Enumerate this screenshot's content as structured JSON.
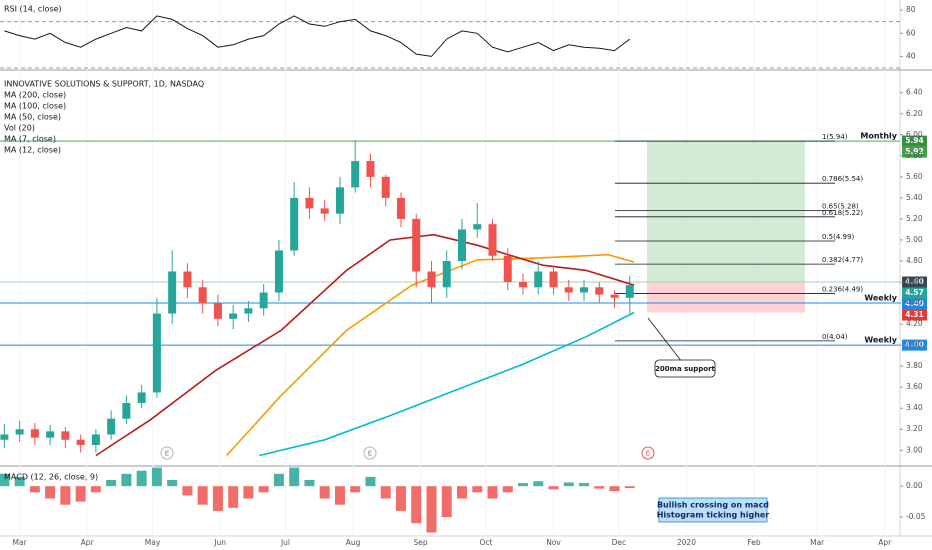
{
  "chart_data": [
    {
      "type": "line",
      "title": "RSI (14, close)",
      "color": "#131722",
      "x": [
        53,
        60,
        67,
        74,
        81,
        88,
        95,
        102,
        109,
        116,
        123,
        130,
        137,
        144,
        151,
        158,
        165,
        172,
        179,
        186,
        193,
        200,
        207,
        214,
        221,
        228,
        235,
        242,
        249,
        256,
        263,
        270,
        277,
        284,
        291,
        298,
        305,
        312,
        319,
        326,
        333,
        340
      ],
      "values": [
        62,
        58,
        55,
        60,
        52,
        48,
        55,
        60,
        65,
        62,
        75,
        72,
        64,
        58,
        48,
        50,
        55,
        58,
        68,
        75,
        68,
        66,
        70,
        72,
        62,
        58,
        52,
        42,
        40,
        55,
        62,
        60,
        48,
        44,
        48,
        52,
        45,
        50,
        48,
        47,
        45,
        55
      ],
      "levels": [
        70,
        30
      ],
      "ylim": [
        30,
        87
      ],
      "yticks": [
        80,
        60,
        40
      ]
    },
    {
      "type": "candlestick",
      "title": "INNOVATIVE SOLUTIONS & SUPPORT, 1D, NASDAQ",
      "x": [
        53,
        60,
        67,
        74,
        81,
        88,
        95,
        102,
        109,
        116,
        123,
        130,
        137,
        144,
        151,
        158,
        165,
        172,
        179,
        186,
        193,
        200,
        207,
        214,
        221,
        228,
        235,
        242,
        249,
        256,
        263,
        270,
        277,
        284,
        291,
        298,
        305,
        312,
        319,
        326,
        333,
        340
      ],
      "open": [
        3.1,
        3.15,
        3.2,
        3.12,
        3.18,
        3.1,
        3.05,
        3.15,
        3.3,
        3.45,
        3.55,
        4.3,
        4.7,
        4.55,
        4.4,
        4.25,
        4.3,
        4.35,
        4.5,
        4.9,
        5.4,
        5.3,
        5.25,
        5.5,
        5.75,
        5.6,
        5.4,
        5.2,
        4.7,
        4.55,
        4.8,
        5.1,
        5.15,
        4.85,
        4.6,
        4.55,
        4.7,
        4.55,
        4.5,
        4.55,
        4.48,
        4.45
      ],
      "high": [
        3.25,
        3.28,
        3.26,
        3.24,
        3.22,
        3.15,
        3.2,
        3.38,
        3.52,
        3.62,
        4.45,
        4.9,
        4.78,
        4.62,
        4.48,
        4.38,
        4.42,
        4.58,
        5.0,
        5.55,
        5.5,
        5.38,
        5.6,
        5.95,
        5.82,
        5.62,
        5.45,
        5.25,
        4.8,
        4.9,
        5.2,
        5.35,
        5.2,
        4.92,
        4.68,
        4.8,
        4.75,
        4.62,
        4.62,
        4.6,
        4.52,
        4.66
      ],
      "low": [
        3.02,
        3.08,
        3.05,
        3.05,
        3.02,
        2.98,
        2.98,
        3.1,
        3.25,
        3.4,
        3.5,
        4.2,
        4.45,
        4.3,
        4.18,
        4.15,
        4.22,
        4.28,
        4.42,
        4.85,
        5.2,
        5.18,
        5.15,
        5.45,
        5.5,
        5.32,
        5.12,
        4.55,
        4.4,
        4.45,
        4.72,
        5.02,
        4.8,
        4.52,
        4.48,
        4.48,
        4.48,
        4.42,
        4.42,
        4.4,
        4.35,
        4.3
      ],
      "close": [
        3.15,
        3.2,
        3.12,
        3.18,
        3.1,
        3.05,
        3.15,
        3.3,
        3.45,
        3.55,
        4.3,
        4.7,
        4.55,
        4.4,
        4.25,
        4.3,
        4.35,
        4.5,
        4.9,
        5.4,
        5.3,
        5.25,
        5.5,
        5.75,
        5.6,
        5.4,
        5.2,
        4.7,
        4.55,
        4.8,
        5.1,
        5.15,
        4.85,
        4.6,
        4.55,
        4.7,
        4.55,
        4.5,
        4.55,
        4.48,
        4.45,
        4.57
      ],
      "up_color": "#26a69a",
      "down_color": "#ef5350",
      "series": [
        {
          "name": "MA (200, close)",
          "color": "#00bcd4",
          "x": [
            170,
            200,
            230,
            260,
            290,
            320,
            342
          ],
          "values": [
            2.95,
            3.1,
            3.33,
            3.57,
            3.81,
            4.08,
            4.31
          ]
        },
        {
          "name": "MA (100, close)",
          "color": "#ff9800",
          "x": [
            155,
            180,
            210,
            240,
            270,
            300,
            330,
            342
          ],
          "values": [
            2.95,
            3.52,
            4.14,
            4.57,
            4.81,
            4.83,
            4.86,
            4.79
          ]
        },
        {
          "name": "MA (50, close)",
          "color": "#b71c1c",
          "x": [
            95,
            120,
            150,
            180,
            210,
            230,
            250,
            270,
            300,
            320,
            342
          ],
          "values": [
            2.95,
            3.29,
            3.76,
            4.14,
            4.71,
            5.0,
            5.05,
            4.95,
            4.76,
            4.71,
            4.57
          ]
        }
      ],
      "other_indicators": [
        "Vol (20)",
        "MA (7, close)",
        "MA (12, close)"
      ],
      "xlim": [
        51,
        464
      ],
      "xticks": [
        {
          "value": 60,
          "label": "Mar"
        },
        {
          "value": 91,
          "label": "Apr"
        },
        {
          "value": 121,
          "label": "May"
        },
        {
          "value": 152,
          "label": "Jun"
        },
        {
          "value": 182,
          "label": "Jul"
        },
        {
          "value": 213,
          "label": "Aug"
        },
        {
          "value": 244,
          "label": "Sep"
        },
        {
          "value": 274,
          "label": "Oct"
        },
        {
          "value": 305,
          "label": "Nov"
        },
        {
          "value": 335,
          "label": "Dec"
        },
        {
          "value": 366,
          "label": "2020"
        },
        {
          "value": 397,
          "label": "Feb"
        },
        {
          "value": 426,
          "label": "Mar"
        },
        {
          "value": 457,
          "label": "Apr"
        }
      ],
      "ylim": [
        2.86,
        6.54
      ],
      "yticks": [
        {
          "value": 3.0,
          "label": "3.00"
        },
        {
          "value": 3.2,
          "label": "3.20"
        },
        {
          "value": 3.4,
          "label": "3.40"
        },
        {
          "value": 3.6,
          "label": "3.60"
        },
        {
          "value": 3.8,
          "label": "3.80"
        },
        {
          "value": 4.0,
          "label": "4.00"
        },
        {
          "value": 4.2,
          "label": "4.20"
        },
        {
          "value": 4.4,
          "label": "4.40"
        },
        {
          "value": 4.6,
          "label": "4.60"
        },
        {
          "value": 4.8,
          "label": "4.80"
        },
        {
          "value": 5.0,
          "label": "5.00"
        },
        {
          "value": 5.2,
          "label": "5.20"
        },
        {
          "value": 5.4,
          "label": "5.40"
        },
        {
          "value": 5.6,
          "label": "5.60"
        },
        {
          "value": 5.8,
          "label": "5.80"
        },
        {
          "value": 6.0,
          "label": "6.00"
        },
        {
          "value": 6.2,
          "label": "6.20"
        },
        {
          "value": 6.4,
          "label": "6.40"
        }
      ],
      "fib_levels": [
        {
          "value": 5.94,
          "label": "1(5.94)"
        },
        {
          "value": 5.54,
          "label": "0.786(5.54)"
        },
        {
          "value": 5.28,
          "label": "0.65(5.28)"
        },
        {
          "value": 5.22,
          "label": "0.618(5.22)"
        },
        {
          "value": 4.99,
          "label": "0.5(4.99)"
        },
        {
          "value": 4.77,
          "label": "0.382(4.77)"
        },
        {
          "value": 4.49,
          "label": "0.236(4.49)"
        },
        {
          "value": 4.04,
          "label": "0(4.04)"
        }
      ],
      "price_tags": [
        {
          "value": 5.94,
          "label": "5.94",
          "color": "#388e3c",
          "name": "Monthly",
          "line": "#4caf50"
        },
        {
          "value": 5.92,
          "label": "5.92",
          "color": "#43a047"
        },
        {
          "value": 4.6,
          "label": "4.60",
          "color": "#37474f",
          "line": "#a5d6a7"
        },
        {
          "value": 4.57,
          "label": "4.57",
          "color": "#26a69a"
        },
        {
          "value": 4.4,
          "label": "4.40",
          "color": "#1e88e5",
          "name": "Weekly",
          "line": "#1e88e5"
        },
        {
          "value": 4.31,
          "label": "4.31",
          "color": "#e53935"
        },
        {
          "value": 4.0,
          "label": "4.00",
          "color": "#1e88e5",
          "name": "Weekly",
          "line": "#1e88e5"
        }
      ],
      "earnings_labels": [
        "E",
        "E",
        "E"
      ],
      "annotations": [
        {
          "lines": [
            "200ma support"
          ]
        },
        {
          "lines": [
            "Bullish crossing on macd",
            "Histogram ticking higher"
          ]
        }
      ]
    },
    {
      "type": "bar",
      "title": "MACD (12, 26, close, 9)",
      "x": [
        53,
        60,
        67,
        74,
        81,
        88,
        95,
        102,
        109,
        116,
        123,
        130,
        137,
        144,
        151,
        158,
        165,
        172,
        179,
        186,
        193,
        200,
        207,
        214,
        221,
        228,
        235,
        242,
        249,
        256,
        263,
        270,
        277,
        284,
        291,
        298,
        305,
        312,
        319,
        326,
        333,
        340
      ],
      "values": [
        0.02,
        0.015,
        -0.01,
        -0.02,
        -0.03,
        -0.025,
        -0.01,
        0.01,
        0.02,
        0.025,
        0.03,
        0.01,
        -0.015,
        -0.03,
        -0.04,
        -0.035,
        -0.02,
        -0.01,
        0.02,
        0.03,
        0.01,
        -0.02,
        -0.03,
        -0.01,
        0.015,
        -0.02,
        -0.04,
        -0.06,
        -0.075,
        -0.05,
        -0.02,
        -0.01,
        -0.02,
        -0.01,
        0.005,
        0.008,
        -0.005,
        0.006,
        0.005,
        -0.004,
        -0.008,
        -0.003
      ],
      "up_color": "#26a69a",
      "down_color": "#ef5350",
      "ylim": [
        -0.079,
        0.031
      ],
      "yticks": [
        {
          "value": 0,
          "label": "0.00"
        },
        {
          "value": -0.05,
          "label": "-0.05"
        }
      ]
    }
  ]
}
